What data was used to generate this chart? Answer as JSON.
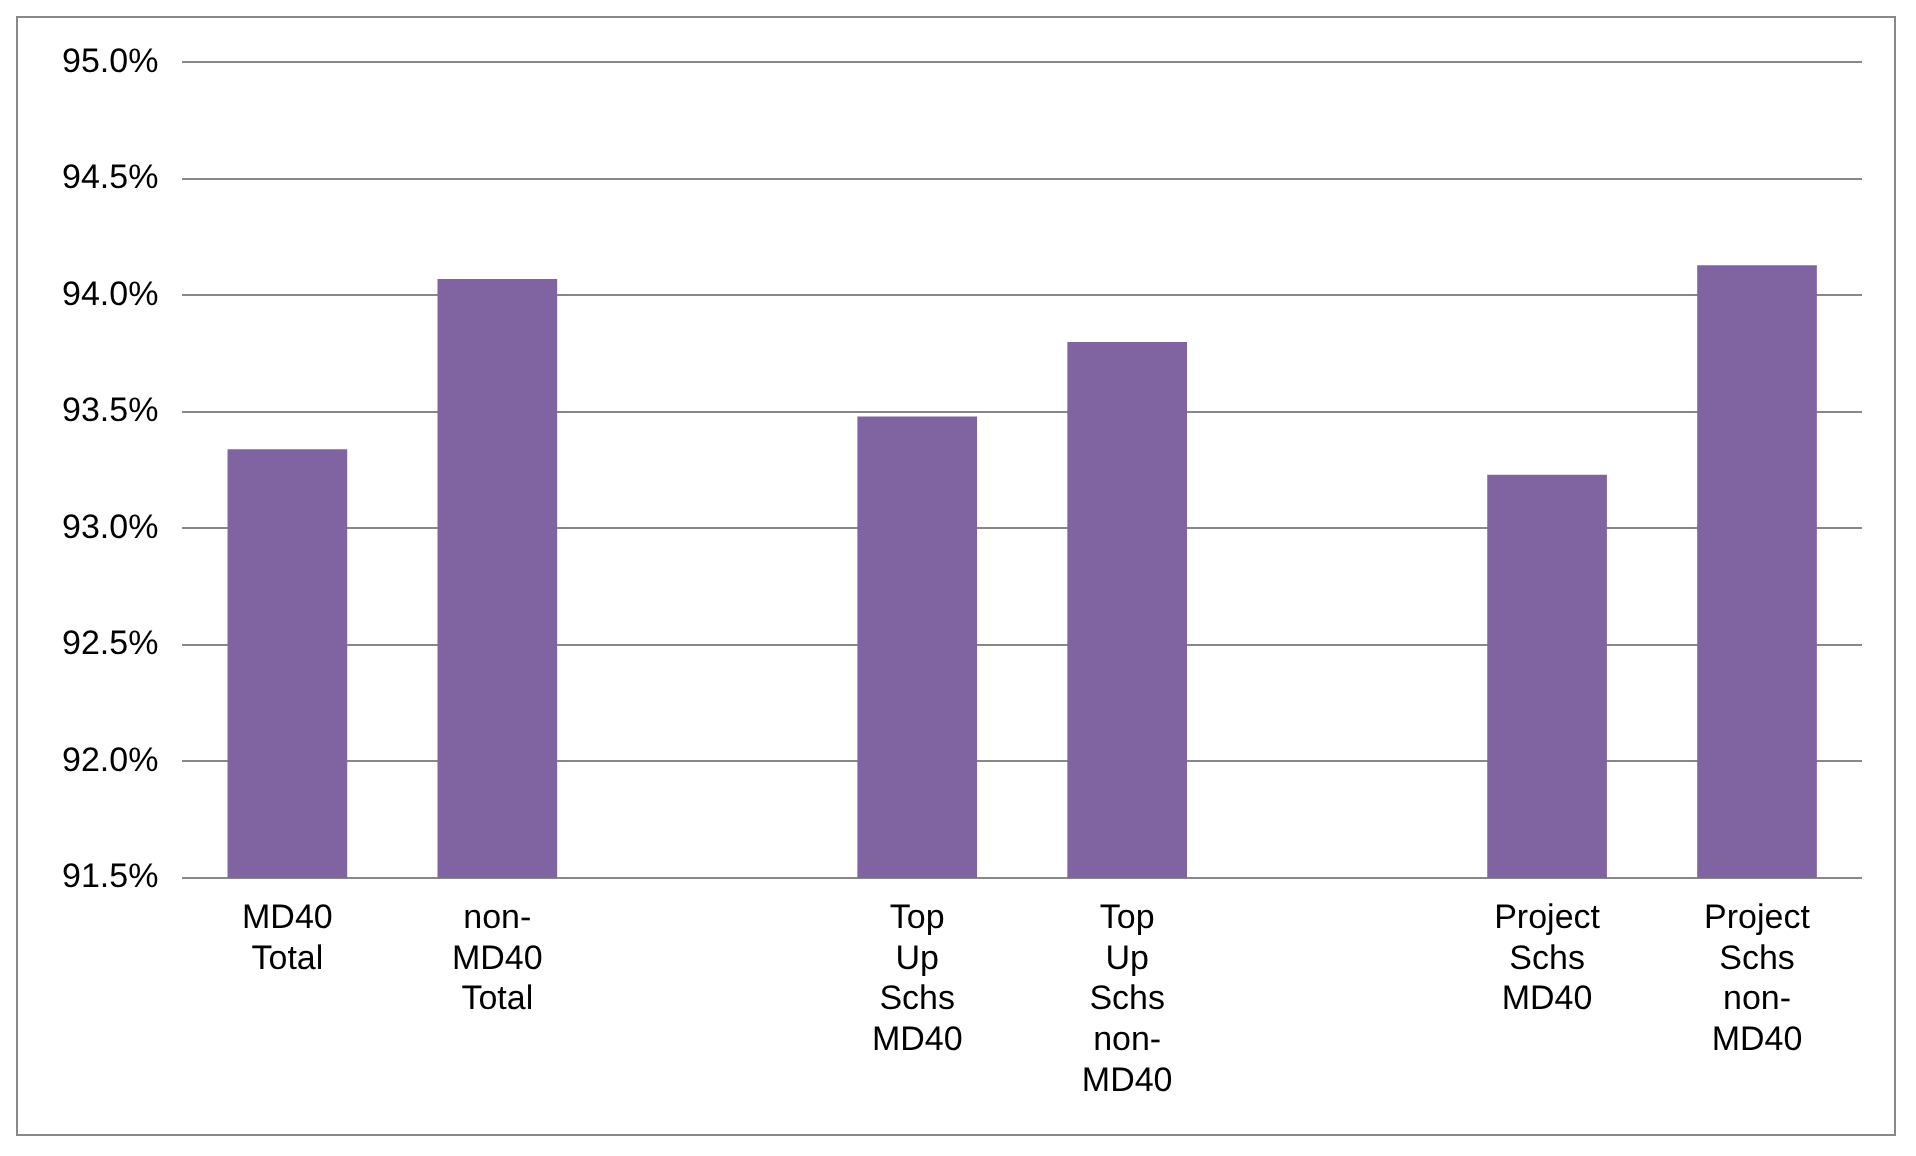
{
  "chart_data": {
    "type": "bar",
    "categories": [
      "MD40 Total",
      "non-MD40 Total",
      null,
      "Top Up Schs MD40",
      "Top Up Schs non-MD40",
      null,
      "Project Schs MD40",
      "Project Schs non-MD40"
    ],
    "values": [
      93.34,
      94.07,
      null,
      93.48,
      93.8,
      null,
      93.23,
      94.13
    ],
    "color": "#8064a2",
    "ylim": [
      91.5,
      95.0
    ],
    "yticks": [
      {
        "value": 91.5,
        "label": "91.5%"
      },
      {
        "value": 92.0,
        "label": "92.0%"
      },
      {
        "value": 92.5,
        "label": "92.5%"
      },
      {
        "value": 93.0,
        "label": "93.0%"
      },
      {
        "value": 93.5,
        "label": "93.5%"
      },
      {
        "value": 94.0,
        "label": "94.0%"
      },
      {
        "value": 94.5,
        "label": "94.5%"
      },
      {
        "value": 95.0,
        "label": "95.0%"
      }
    ],
    "grid": "y",
    "legend": false
  }
}
